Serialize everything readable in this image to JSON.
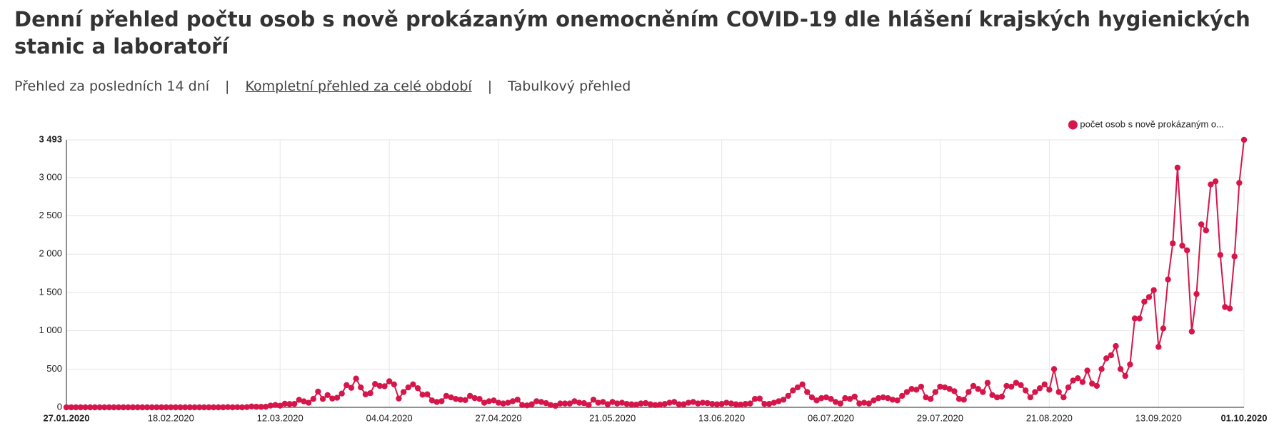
{
  "header": {
    "title": "Denní přehled počtu osob s nově prokázaným onemocněním COVID-19 dle hlášení krajských hygienických stanic a laboratoří"
  },
  "nav": [
    "Přehled za posledních 14 dní",
    "Kompletní přehled za celé období",
    "Tabulkový přehled"
  ],
  "chart_data": {
    "type": "line",
    "categories": [
      "27.01.2020",
      null,
      null,
      null,
      null,
      null,
      null,
      null,
      null,
      null,
      null,
      null,
      null,
      null,
      null,
      null,
      null,
      null,
      null,
      null,
      null,
      null,
      "18.02.2020",
      null,
      null,
      null,
      null,
      null,
      null,
      null,
      null,
      null,
      null,
      null,
      null,
      null,
      null,
      null,
      null,
      null,
      null,
      null,
      null,
      null,
      null,
      "12.03.2020",
      null,
      null,
      null,
      null,
      null,
      null,
      null,
      null,
      null,
      null,
      null,
      null,
      null,
      null,
      null,
      null,
      null,
      null,
      null,
      null,
      null,
      null,
      "04.04.2020",
      null,
      null,
      null,
      null,
      null,
      null,
      null,
      null,
      null,
      null,
      null,
      null,
      null,
      null,
      null,
      null,
      null,
      null,
      null,
      null,
      null,
      null,
      "27.04.2020",
      null,
      null,
      null,
      null,
      null,
      null,
      null,
      null,
      null,
      null,
      null,
      null,
      null,
      null,
      null,
      null,
      null,
      null,
      null,
      null,
      null,
      null,
      null,
      "21.05.2020",
      null,
      null,
      null,
      null,
      null,
      null,
      null,
      null,
      null,
      null,
      null,
      null,
      null,
      null,
      null,
      null,
      null,
      null,
      null,
      null,
      null,
      null,
      "13.06.2020",
      null,
      null,
      null,
      null,
      null,
      null,
      null,
      null,
      null,
      null,
      null,
      null,
      null,
      null,
      null,
      null,
      null,
      null,
      null,
      null,
      null,
      null,
      "06.07.2020",
      null,
      null,
      null,
      null,
      null,
      null,
      null,
      null,
      null,
      null,
      null,
      null,
      null,
      null,
      null,
      null,
      null,
      null,
      null,
      null,
      null,
      null,
      "29.07.2020",
      null,
      null,
      null,
      null,
      null,
      null,
      null,
      null,
      null,
      null,
      null,
      null,
      null,
      null,
      null,
      null,
      null,
      null,
      null,
      null,
      null,
      null,
      "21.08.2020",
      null,
      null,
      null,
      null,
      null,
      null,
      null,
      null,
      null,
      null,
      null,
      null,
      null,
      null,
      null,
      null,
      null,
      null,
      null,
      null,
      null,
      null,
      "13.09.2020",
      null,
      null,
      null,
      null,
      null,
      null,
      null,
      null,
      null,
      null,
      null,
      null,
      null,
      null,
      null,
      null,
      null,
      "01.10.2020"
    ],
    "series": [
      {
        "name": "počet osob s nově prokázaným o...",
        "color": "#d6164a",
        "values": [
          0,
          0,
          0,
          0,
          0,
          0,
          0,
          0,
          0,
          0,
          0,
          0,
          0,
          0,
          0,
          0,
          0,
          0,
          0,
          0,
          0,
          0,
          0,
          0,
          0,
          0,
          0,
          0,
          0,
          0,
          0,
          0,
          0,
          0,
          3,
          0,
          2,
          0,
          3,
          11,
          7,
          6,
          8,
          23,
          31,
          22,
          47,
          43,
          45,
          98,
          78,
          60,
          110,
          205,
          110,
          160,
          115,
          125,
          180,
          290,
          255,
          375,
          260,
          170,
          185,
          305,
          280,
          275,
          340,
          300,
          115,
          200,
          260,
          300,
          250,
          165,
          170,
          90,
          70,
          80,
          150,
          130,
          110,
          100,
          95,
          150,
          120,
          110,
          60,
          80,
          90,
          60,
          50,
          60,
          80,
          100,
          30,
          25,
          40,
          80,
          70,
          55,
          30,
          20,
          50,
          50,
          50,
          80,
          60,
          55,
          30,
          100,
          60,
          70,
          40,
          70,
          50,
          60,
          45,
          40,
          35,
          50,
          55,
          40,
          30,
          35,
          45,
          60,
          70,
          40,
          40,
          60,
          70,
          50,
          60,
          55,
          45,
          40,
          45,
          60,
          50,
          40,
          35,
          45,
          50,
          110,
          115,
          45,
          45,
          60,
          80,
          100,
          150,
          220,
          260,
          300,
          200,
          130,
          90,
          120,
          130,
          110,
          70,
          50,
          120,
          110,
          140,
          50,
          60,
          50,
          90,
          120,
          130,
          120,
          100,
          90,
          150,
          200,
          240,
          230,
          270,
          130,
          110,
          200,
          270,
          260,
          240,
          210,
          110,
          100,
          200,
          280,
          240,
          200,
          320,
          160,
          130,
          140,
          280,
          270,
          320,
          290,
          220,
          130,
          200,
          250,
          300,
          230,
          500,
          200,
          130,
          260,
          350,
          380,
          330,
          480,
          310,
          280,
          500,
          640,
          680,
          800,
          500,
          410,
          560,
          1160,
          1160,
          1380,
          1440,
          1530,
          790,
          1030,
          1670,
          2140,
          3130,
          2110,
          2050,
          990,
          1480,
          2390,
          2310,
          2910,
          2950,
          1990,
          1310,
          1290,
          1970,
          2930,
          3493
        ]
      }
    ],
    "ylim": [
      0,
      3493
    ],
    "yticks": [
      0,
      500,
      {
        "value": 1000,
        "label": "1 000"
      },
      {
        "value": 1500,
        "label": "1 500"
      },
      {
        "value": 2000,
        "label": "2 000"
      },
      {
        "value": 2500,
        "label": "2 500"
      },
      {
        "value": 3000,
        "label": "3 000"
      },
      {
        "value": 3493,
        "label": "3 493"
      }
    ],
    "grid": true,
    "legend": "top-right"
  }
}
